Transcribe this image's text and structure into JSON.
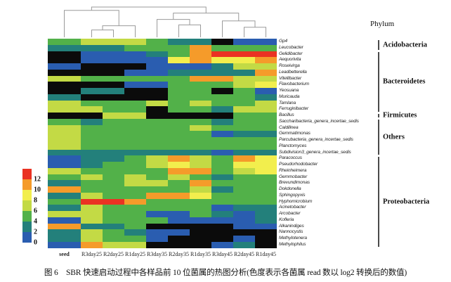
{
  "figure": {
    "caption": "图 6　SBR 快速启动过程中各样品前 10 位菌属的热图分析(色度表示各菌属 read 数以 log2 转换后的数值)",
    "phylum_header": "Phylum"
  },
  "chart_data": {
    "type": "heatmap",
    "title": "",
    "xlabel": "",
    "ylabel": "",
    "columns": [
      "seed",
      "R3day25",
      "R2day25",
      "R1day25",
      "R3day35",
      "R2day35",
      "R1day35",
      "R3day45",
      "R2day45",
      "R1day45"
    ],
    "rows": [
      "Gp4",
      "Leucobacter",
      "Gelidibacter",
      "Aequorivita",
      "Roseivirga",
      "Leadbetterella",
      "Vitellibacter",
      "Flavobacterium",
      "Yeosuana",
      "Muricauda",
      "Tamlana",
      "Ferruginibacter",
      "Bacillus",
      "Saccharibacteria_genera_incertae_sedis",
      "Caldilinea",
      "Gemmatimonas",
      "Parcubacteria_genera_incertae_sedis",
      "Planctomyces",
      "Subdivision3_genera_incertae_sedis",
      "Paracoccus",
      "Pseudorhodobacter",
      "Rheinheimera",
      "Gemmobacter",
      "Brevundimonas",
      "Dokdonella",
      "Sphingopyxis",
      "Hyphomicrobium",
      "Acinetobacter",
      "Arcobacter",
      "Kofleria",
      "Alkanindiges",
      "Nannocystis",
      "Methylotenera",
      "Methylophilus"
    ],
    "cells": [
      "GLLLGTTKBB",
      "TTTGGGOGGG",
      "KBBBTGORRR",
      "KBBBBYOYYO",
      "BKKKBBBTLL",
      "KKKBBTTTTO",
      "LGGGGGOOLL",
      "KKKBBGGGLY",
      "KTTKKGGKGB",
      "TKKKKGGGGT",
      "LGGGLGLGGL",
      "LLGGKGGTLL",
      "KKLLKKKKGG",
      "GTGGGGGTGG",
      "LGGGGGLGGG",
      "LGGGGGGBTT",
      "LGGGGGGGGG",
      "LGGGGGGGGG",
      "TTTTTTTBTT",
      "BTTGLOLGOY",
      "BTGGLYLGYY",
      "LGGGGOOGLY",
      "GLGLGLGTGG",
      "TGGLLGOGGG",
      "OGGGGGLTGG",
      "TLGGOOYGGG",
      "GRROGGGGGG",
      "TLGGGGGBTT",
      "LLGGBBGTBT",
      "BLGGGBBBBT",
      "OTTGKKKKBB",
      "TLGTBBKKKK",
      "TLGGBKKKBK",
      "BOLLKKKBTK"
    ],
    "palette": {
      "K": "#0b0b0b",
      "B": "#2a5db0",
      "T": "#23807b",
      "G": "#52b149",
      "L": "#c3da45",
      "Y": "#f2ee4d",
      "O": "#f59b2a",
      "R": "#ea3223"
    },
    "value_ranges": {
      "B": "0-2",
      "T": "2-4",
      "G": "4-6",
      "L": "6-8",
      "Y": "8-10",
      "O": "10-12",
      "R": ">12",
      "K": "not detected"
    },
    "legend_ticks": [
      "12",
      "10",
      "8",
      "6",
      "4",
      "2",
      "0"
    ],
    "legend_segments": [
      "R",
      "O",
      "Y",
      "L",
      "G",
      "T",
      "B"
    ],
    "phylum_groups": [
      {
        "name": "Acidobacteria",
        "from": 1,
        "to": 2
      },
      {
        "name": "Bacteroidetes",
        "from": 3,
        "to": 12
      },
      {
        "name": "Firmicutes",
        "from": 13,
        "to": 13
      },
      {
        "name": "Others",
        "from": 14,
        "to": 19
      },
      {
        "name": "Proteobacteria",
        "from": 20,
        "to": 34
      }
    ],
    "dendrogram": {
      "leaf_order": [
        0,
        1,
        2,
        3,
        4,
        5,
        6,
        7,
        8,
        9
      ],
      "merges": [
        [
          "L1",
          "L2",
          0.24
        ],
        [
          "m0",
          "L3",
          0.38
        ],
        [
          "L0",
          "m1",
          0.89
        ],
        [
          "L5",
          "L6",
          0.41
        ],
        [
          "L4",
          "m3",
          0.59
        ],
        [
          "L8",
          "L9",
          0.33
        ],
        [
          "L7",
          "m5",
          0.54
        ],
        [
          "m4",
          "m6",
          0.8
        ],
        [
          "m2",
          "m7",
          1.0
        ]
      ]
    }
  }
}
